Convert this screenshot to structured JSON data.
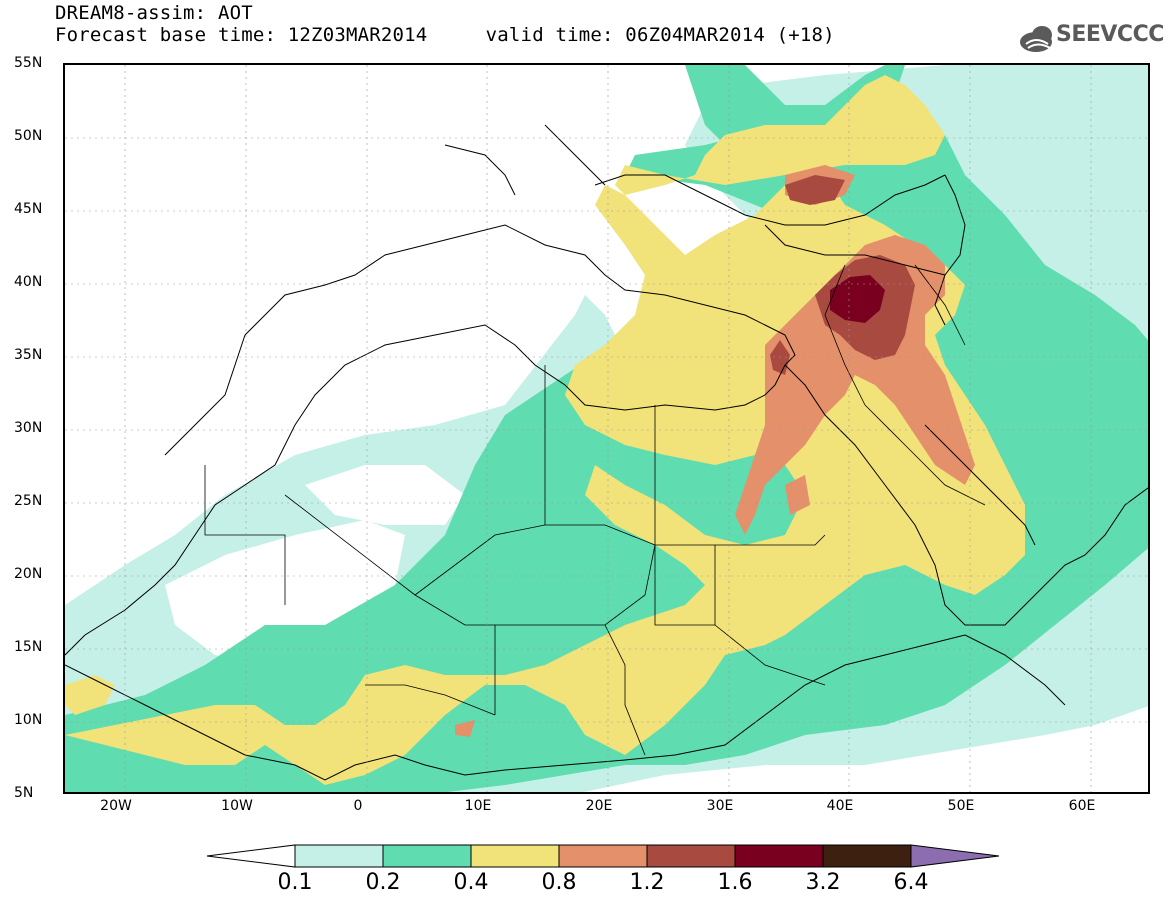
{
  "header": {
    "title_line1": "DREAM8-assim: AOT",
    "title_line2": "Forecast base time: 12Z03MAR2014     valid time: 06Z04MAR2014 (+18)",
    "logo_text": "SEEVCCC"
  },
  "map": {
    "lat_labels": [
      "55N",
      "50N",
      "45N",
      "40N",
      "35N",
      "30N",
      "25N",
      "20N",
      "15N",
      "10N",
      "5N"
    ],
    "lon_labels": [
      "20W",
      "10W",
      "0",
      "10E",
      "20E",
      "30E",
      "40E",
      "50E",
      "60E"
    ],
    "extent": {
      "lon_min": -25,
      "lon_max": 65,
      "lat_min": 5,
      "lat_max": 55
    },
    "max_aot_area": "eastern Turkey / northern Iraq (~38N, 40-44E)"
  },
  "colorbar": {
    "ticks": [
      "0.1",
      "0.2",
      "0.4",
      "0.8",
      "1.2",
      "1.6",
      "3.2",
      "6.4"
    ],
    "colors": [
      "#ffffff",
      "#c5f0e8",
      "#5fdcb0",
      "#f2e27a",
      "#e4906a",
      "#a84a40",
      "#7a0020",
      "#3d2010",
      "#8b6db0"
    ]
  },
  "colors": {
    "aot_0_1": "#c5f0e8",
    "aot_0_2": "#5fdcb0",
    "aot_0_4": "#f2e27a",
    "aot_0_8": "#e4906a",
    "aot_1_2": "#a84a40",
    "aot_1_6": "#7a0020",
    "aot_3_2": "#3d2010",
    "aot_6_4": "#8b6db0"
  }
}
